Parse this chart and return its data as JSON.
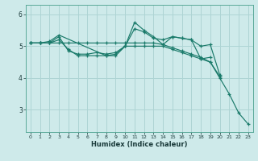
{
  "title": "",
  "xlabel": "Humidex (Indice chaleur)",
  "ylabel": "",
  "background_color": "#ceeaea",
  "grid_color": "#aed4d4",
  "line_color": "#1a7a6a",
  "xlim": [
    -0.5,
    23.5
  ],
  "ylim": [
    2.3,
    6.3
  ],
  "yticks": [
    3,
    4,
    5,
    6
  ],
  "xticks": [
    0,
    1,
    2,
    3,
    4,
    5,
    6,
    7,
    8,
    9,
    10,
    11,
    12,
    13,
    14,
    15,
    16,
    17,
    18,
    19,
    20,
    21,
    22,
    23
  ],
  "lines": [
    {
      "x": [
        0,
        1,
        2,
        3,
        4,
        5,
        6,
        7,
        8,
        9,
        10,
        11,
        12,
        13,
        14,
        15,
        16,
        17,
        18,
        19,
        20,
        21,
        22,
        23
      ],
      "y": [
        5.1,
        5.1,
        5.1,
        5.2,
        4.9,
        4.7,
        4.7,
        4.7,
        4.7,
        4.75,
        5.0,
        5.0,
        5.0,
        5.0,
        5.0,
        4.9,
        4.8,
        4.7,
        4.6,
        4.5,
        4.0,
        3.5,
        2.9,
        2.55
      ]
    },
    {
      "x": [
        0,
        1,
        2,
        3,
        4,
        5,
        6,
        7,
        8,
        9,
        10,
        11,
        12,
        13,
        14,
        15,
        16,
        17,
        18,
        19,
        20
      ],
      "y": [
        5.1,
        5.1,
        5.1,
        5.3,
        4.85,
        4.75,
        4.75,
        4.8,
        4.75,
        4.8,
        5.0,
        5.55,
        5.45,
        5.25,
        5.2,
        5.3,
        5.25,
        5.2,
        5.0,
        5.05,
        4.1
      ]
    },
    {
      "x": [
        0,
        1,
        2,
        3,
        8,
        9,
        10,
        11,
        12,
        13,
        14,
        15,
        16,
        17,
        18,
        19
      ],
      "y": [
        5.1,
        5.1,
        5.15,
        5.35,
        4.7,
        4.7,
        5.0,
        5.75,
        5.5,
        5.3,
        5.05,
        5.3,
        5.25,
        5.2,
        4.6,
        4.65
      ]
    },
    {
      "x": [
        0,
        1,
        2,
        3,
        4,
        5,
        6,
        7,
        8,
        9,
        10,
        11,
        12,
        13,
        14,
        15,
        16,
        17,
        18,
        19,
        20
      ],
      "y": [
        5.1,
        5.1,
        5.1,
        5.1,
        5.1,
        5.1,
        5.1,
        5.1,
        5.1,
        5.1,
        5.1,
        5.1,
        5.1,
        5.1,
        5.05,
        4.95,
        4.85,
        4.75,
        4.65,
        4.5,
        4.05
      ]
    }
  ]
}
